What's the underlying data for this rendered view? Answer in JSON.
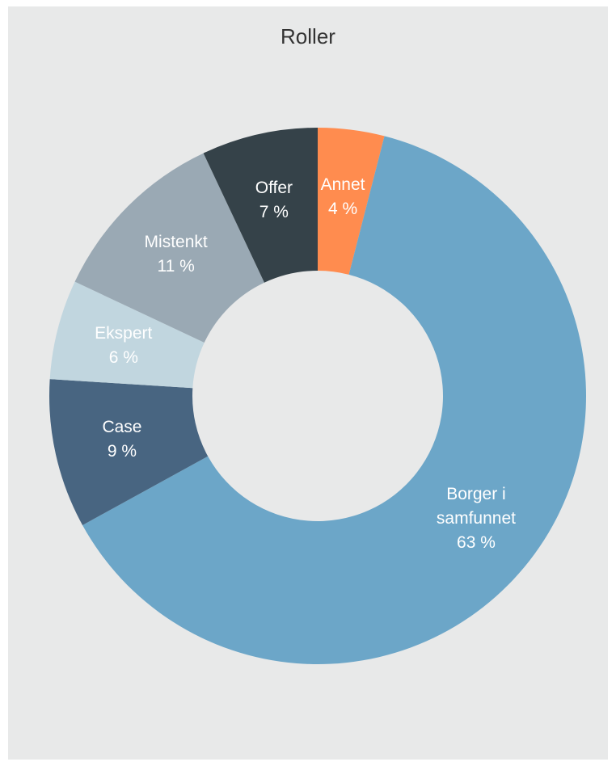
{
  "chart_data": {
    "type": "donut",
    "title": "Roller",
    "categories": [
      "Annet",
      "Borger i samfunnet",
      "Case",
      "Ekspert",
      "Mistenkt",
      "Offer"
    ],
    "values": [
      4,
      63,
      9,
      6,
      11,
      7
    ],
    "value_labels": [
      "4 %",
      "63 %",
      "9 %",
      "6 %",
      "11 %",
      "7 %"
    ],
    "colors": [
      "#ff8c4f",
      "#6ca6c8",
      "#486581",
      "#c1d6df",
      "#9aa9b4",
      "#354249"
    ]
  }
}
